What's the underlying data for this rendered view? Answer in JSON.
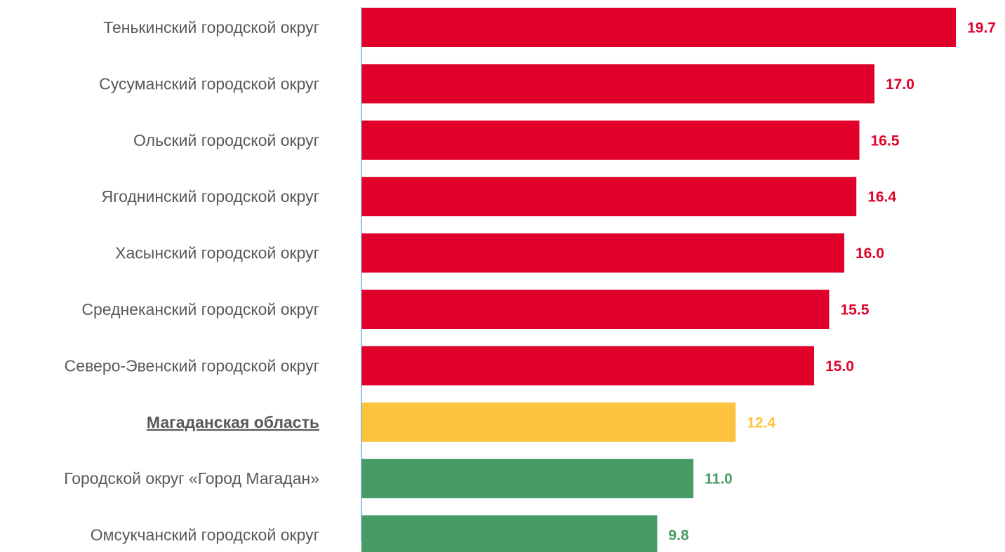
{
  "chart_data": {
    "type": "bar",
    "orientation": "horizontal",
    "title": "",
    "xlabel": "",
    "ylabel": "",
    "grid": false,
    "legend": "none",
    "categories": [
      "Тенькинский городской округ",
      "Сусуманский городской округ",
      "Ольский городской округ",
      "Ягоднинский городской округ",
      "Хасынский городской округ",
      "Среднеканский городской округ",
      "Северо-Эвенский городской округ",
      "Магаданская область",
      "Городской округ «Город Магадан»",
      "Омсукчанский городской округ"
    ],
    "values": [
      19.7,
      17.0,
      16.5,
      16.4,
      16.0,
      15.5,
      15.0,
      12.4,
      11.0,
      9.8
    ],
    "value_labels": [
      "19.7",
      "17.0",
      "16.5",
      "16.4",
      "16.0",
      "15.5",
      "15.0",
      "12.4",
      "11.0",
      "9.8"
    ],
    "bar_colors": [
      "#E0002A",
      "#E0002A",
      "#E0002A",
      "#E0002A",
      "#E0002A",
      "#E0002A",
      "#E0002A",
      "#FEC33E",
      "#479B67",
      "#479B67"
    ],
    "highlighted_category": "Магаданская область",
    "axis_color": "#5B9BD5",
    "xlim": [
      0,
      20
    ]
  }
}
